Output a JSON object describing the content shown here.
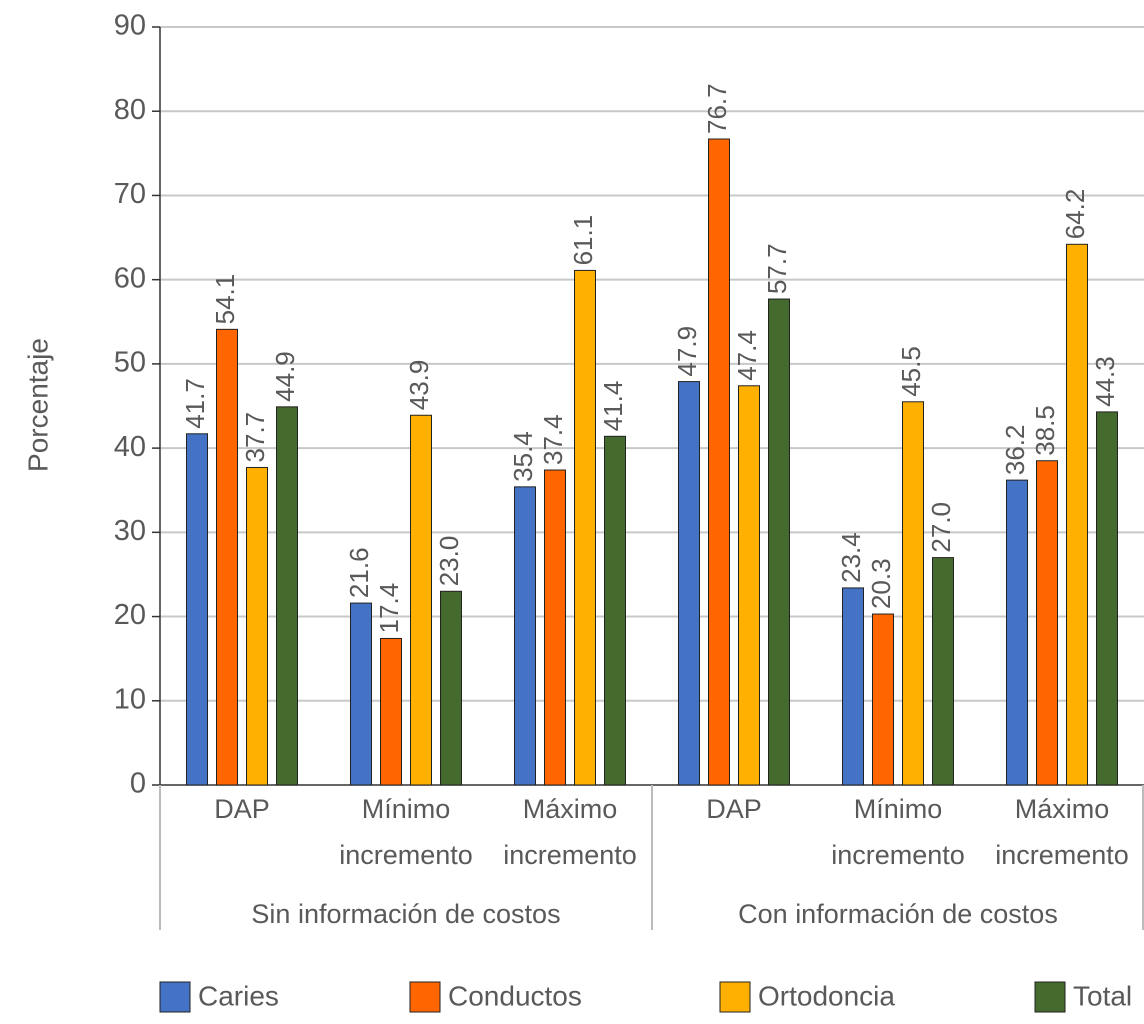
{
  "chart_data": {
    "type": "bar",
    "y_label": "Porcentaje",
    "groups": [
      {
        "name": "Sin información de costos",
        "categories": [
          "DAP",
          "Mínimo incremento",
          "Máximo incremento"
        ]
      },
      {
        "name": "Con información de costos",
        "categories": [
          "DAP",
          "Mínimo incremento",
          "Máximo incremento"
        ]
      }
    ],
    "series": [
      {
        "name": "Caries",
        "color": "#4472c4",
        "values": [
          41.7,
          21.6,
          35.4,
          47.9,
          23.4,
          36.2
        ],
        "value_labels": [
          "41.7",
          "21.6",
          "35.4",
          "47.9",
          "23.4",
          "36.2"
        ]
      },
      {
        "name": "Conductos",
        "color": "#ff6600",
        "values": [
          54.1,
          17.4,
          37.4,
          76.7,
          20.3,
          38.5
        ],
        "value_labels": [
          "54.1",
          "17.4",
          "37.4",
          "76.7",
          "20.3",
          "38.5"
        ]
      },
      {
        "name": "Ortodoncia",
        "color": "#ffb000",
        "values": [
          37.7,
          43.9,
          61.1,
          47.4,
          45.5,
          64.2
        ],
        "value_labels": [
          "37.7",
          "43.9",
          "61.1",
          "47.4",
          "45.5",
          "64.2"
        ]
      },
      {
        "name": "Total",
        "color": "#446a2e",
        "values": [
          44.9,
          23.0,
          41.4,
          57.7,
          27.0,
          44.3
        ],
        "value_labels": [
          "44.9",
          "23.0",
          "41.4",
          "57.7",
          "27.0",
          "44.3"
        ]
      }
    ],
    "ylim": [
      0,
      90
    ],
    "yticks": [
      0,
      10,
      20,
      30,
      40,
      50,
      60,
      70,
      80,
      90
    ],
    "grid": true,
    "legend": "bottom"
  }
}
